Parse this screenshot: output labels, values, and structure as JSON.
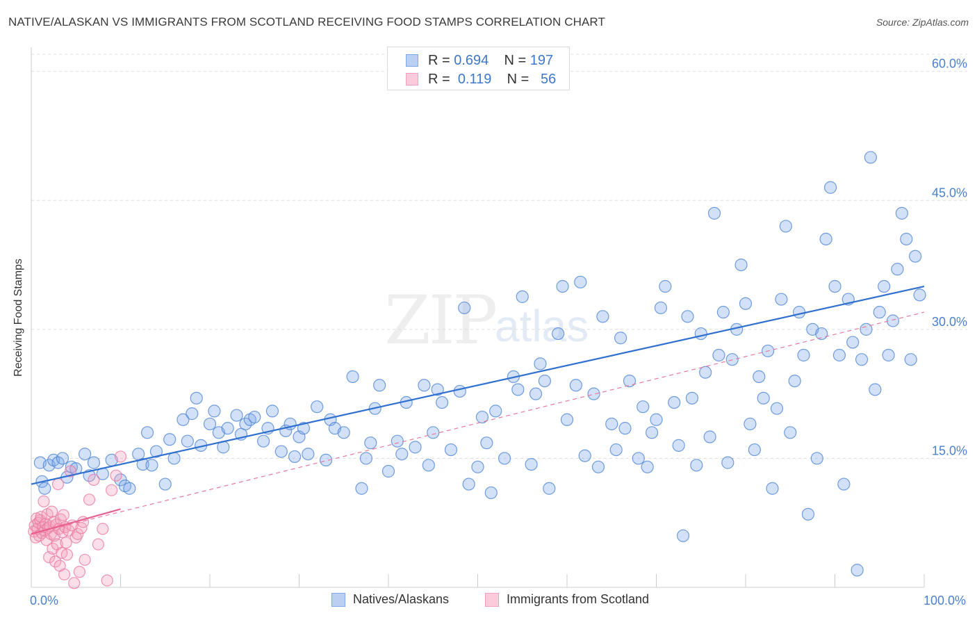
{
  "title": "NATIVE/ALASKAN VS IMMIGRANTS FROM SCOTLAND RECEIVING FOOD STAMPS CORRELATION CHART",
  "source": "Source: ZipAtlas.com",
  "watermark": {
    "zip": "ZIP",
    "atlas": "atlas"
  },
  "legend": [
    {
      "r_label": "R =",
      "r_value": "0.694",
      "n_label": "N =",
      "n_value": "197",
      "color": "#7ea8e8"
    },
    {
      "r_label": "R =",
      "r_value": "0.119",
      "n_label": "N =",
      "n_value": "56",
      "color": "#f4a0bd"
    }
  ],
  "bottom_legend": [
    {
      "label": "Natives/Alaskans",
      "color": "#7ea8e8"
    },
    {
      "label": "Immigrants from Scotland",
      "color": "#f4a0bd"
    }
  ],
  "chart_data": {
    "type": "scatter",
    "title": "NATIVE/ALASKAN VS IMMIGRANTS FROM SCOTLAND RECEIVING FOOD STAMPS CORRELATION CHART",
    "xlabel": "",
    "ylabel": "Receiving Food Stamps",
    "xlim": [
      0,
      100
    ],
    "ylim": [
      0,
      62
    ],
    "x_tick_labels": [
      {
        "value": 0,
        "label": "0.0%"
      },
      {
        "value": 100,
        "label": "100.0%"
      }
    ],
    "y_tick_labels": [
      {
        "value": 15,
        "label": "15.0%"
      },
      {
        "value": 30,
        "label": "30.0%"
      },
      {
        "value": 45,
        "label": "45.0%"
      },
      {
        "value": 60,
        "label": "60.0%"
      }
    ],
    "grid": true,
    "series": [
      {
        "name": "Natives/Alaskans",
        "color": "#7ea8e8",
        "stroke": "#4f86d6",
        "trend": {
          "x": [
            0,
            100
          ],
          "y": [
            12.0,
            35.0
          ],
          "style": "solid"
        },
        "points": [
          [
            1.0,
            14.5
          ],
          [
            1.2,
            12.3
          ],
          [
            1.5,
            11.5
          ],
          [
            2.0,
            14.2
          ],
          [
            2.5,
            14.8
          ],
          [
            3.0,
            14.5
          ],
          [
            3.5,
            15.0
          ],
          [
            4.0,
            12.8
          ],
          [
            4.5,
            14.0
          ],
          [
            5.0,
            13.8
          ],
          [
            6.0,
            15.5
          ],
          [
            6.5,
            13.0
          ],
          [
            7.0,
            14.5
          ],
          [
            8.0,
            13.2
          ],
          [
            9.0,
            14.8
          ],
          [
            10.0,
            12.5
          ],
          [
            10.5,
            11.8
          ],
          [
            11.0,
            11.5
          ],
          [
            12.0,
            15.5
          ],
          [
            12.5,
            14.3
          ],
          [
            13.0,
            18.0
          ],
          [
            13.5,
            14.2
          ],
          [
            14.0,
            15.8
          ],
          [
            15.0,
            12.0
          ],
          [
            15.5,
            17.2
          ],
          [
            16.0,
            15.0
          ],
          [
            17.0,
            19.5
          ],
          [
            17.5,
            17.0
          ],
          [
            18.0,
            20.2
          ],
          [
            18.5,
            22.0
          ],
          [
            19.0,
            16.5
          ],
          [
            20.0,
            19.0
          ],
          [
            20.5,
            20.5
          ],
          [
            21.0,
            18.0
          ],
          [
            21.5,
            16.3
          ],
          [
            22.0,
            18.5
          ],
          [
            23.0,
            20.0
          ],
          [
            23.5,
            17.8
          ],
          [
            24.0,
            19.0
          ],
          [
            24.5,
            19.5
          ],
          [
            25.0,
            19.8
          ],
          [
            26.0,
            17.0
          ],
          [
            26.5,
            18.5
          ],
          [
            27.0,
            20.5
          ],
          [
            28.0,
            15.8
          ],
          [
            28.5,
            18.2
          ],
          [
            29.0,
            19.0
          ],
          [
            29.5,
            15.2
          ],
          [
            30.0,
            17.5
          ],
          [
            30.5,
            18.5
          ],
          [
            31.0,
            15.5
          ],
          [
            32.0,
            21.0
          ],
          [
            33.0,
            14.8
          ],
          [
            33.5,
            19.5
          ],
          [
            34.0,
            18.5
          ],
          [
            35.0,
            18.0
          ],
          [
            36.0,
            24.5
          ],
          [
            37.0,
            11.5
          ],
          [
            37.5,
            15.0
          ],
          [
            38.0,
            16.8
          ],
          [
            38.5,
            20.8
          ],
          [
            39.0,
            23.5
          ],
          [
            40.0,
            13.5
          ],
          [
            41.0,
            17.0
          ],
          [
            41.5,
            15.5
          ],
          [
            42.0,
            21.5
          ],
          [
            43.0,
            16.3
          ],
          [
            44.0,
            23.5
          ],
          [
            44.5,
            14.2
          ],
          [
            45.0,
            18.0
          ],
          [
            45.5,
            23.0
          ],
          [
            46.0,
            21.5
          ],
          [
            47.0,
            16.0
          ],
          [
            48.0,
            22.8
          ],
          [
            48.5,
            32.5
          ],
          [
            49.0,
            12.0
          ],
          [
            50.0,
            14.0
          ],
          [
            50.5,
            19.8
          ],
          [
            51.0,
            16.8
          ],
          [
            51.5,
            11.0
          ],
          [
            52.0,
            20.5
          ],
          [
            53.0,
            15.0
          ],
          [
            54.0,
            24.5
          ],
          [
            54.5,
            23.0
          ],
          [
            55.0,
            33.8
          ],
          [
            56.0,
            14.3
          ],
          [
            56.5,
            22.5
          ],
          [
            57.0,
            26.0
          ],
          [
            57.5,
            24.0
          ],
          [
            58.0,
            11.5
          ],
          [
            59.0,
            29.5
          ],
          [
            59.5,
            35.0
          ],
          [
            60.0,
            19.5
          ],
          [
            61.0,
            23.5
          ],
          [
            61.5,
            35.5
          ],
          [
            62.0,
            15.3
          ],
          [
            63.0,
            22.5
          ],
          [
            63.5,
            14.0
          ],
          [
            64.0,
            31.5
          ],
          [
            65.0,
            19.0
          ],
          [
            65.5,
            16.0
          ],
          [
            66.0,
            29.0
          ],
          [
            66.5,
            18.5
          ],
          [
            67.0,
            24.0
          ],
          [
            68.0,
            15.0
          ],
          [
            68.5,
            21.0
          ],
          [
            69.0,
            14.0
          ],
          [
            69.5,
            18.0
          ],
          [
            70.0,
            19.5
          ],
          [
            70.5,
            32.5
          ],
          [
            71.0,
            35.0
          ],
          [
            72.0,
            21.5
          ],
          [
            72.5,
            16.5
          ],
          [
            73.0,
            6.0
          ],
          [
            73.5,
            31.5
          ],
          [
            74.0,
            22.0
          ],
          [
            74.5,
            14.2
          ],
          [
            75.0,
            29.5
          ],
          [
            75.5,
            25.0
          ],
          [
            76.0,
            17.5
          ],
          [
            76.5,
            43.5
          ],
          [
            77.0,
            27.0
          ],
          [
            77.5,
            32.0
          ],
          [
            78.0,
            14.5
          ],
          [
            78.5,
            26.5
          ],
          [
            79.0,
            30.0
          ],
          [
            79.5,
            37.5
          ],
          [
            80.0,
            33.0
          ],
          [
            80.5,
            19.0
          ],
          [
            81.0,
            16.0
          ],
          [
            81.5,
            24.5
          ],
          [
            82.0,
            22.0
          ],
          [
            82.5,
            27.5
          ],
          [
            83.0,
            11.5
          ],
          [
            83.5,
            20.8
          ],
          [
            84.0,
            33.5
          ],
          [
            84.5,
            42.0
          ],
          [
            85.0,
            18.0
          ],
          [
            85.5,
            24.0
          ],
          [
            86.0,
            32.0
          ],
          [
            86.5,
            27.0
          ],
          [
            87.0,
            8.5
          ],
          [
            87.5,
            30.0
          ],
          [
            88.0,
            15.0
          ],
          [
            88.5,
            29.5
          ],
          [
            89.0,
            40.5
          ],
          [
            89.5,
            46.5
          ],
          [
            90.0,
            35.0
          ],
          [
            90.5,
            27.0
          ],
          [
            91.0,
            12.0
          ],
          [
            91.5,
            33.5
          ],
          [
            92.0,
            28.5
          ],
          [
            92.5,
            2.0
          ],
          [
            93.0,
            26.5
          ],
          [
            93.5,
            30.0
          ],
          [
            94.0,
            50.0
          ],
          [
            94.5,
            23.0
          ],
          [
            95.0,
            32.0
          ],
          [
            95.5,
            35.0
          ],
          [
            96.0,
            27.0
          ],
          [
            96.5,
            31.0
          ],
          [
            97.0,
            37.0
          ],
          [
            97.5,
            43.5
          ],
          [
            98.0,
            40.5
          ],
          [
            98.5,
            26.5
          ],
          [
            99.0,
            38.5
          ],
          [
            99.5,
            34.0
          ]
        ]
      },
      {
        "name": "Immigrants from Scotland",
        "color": "#f4a0bd",
        "stroke": "#ea7aa0",
        "trend": {
          "x": [
            0,
            10
          ],
          "y": [
            6.2,
            9.1
          ],
          "style": "solid"
        },
        "trend_extended": {
          "x": [
            0,
            100
          ],
          "y": [
            6.2,
            32.0
          ],
          "style": "dashed"
        },
        "points": [
          [
            0.3,
            6.5
          ],
          [
            0.4,
            7.2
          ],
          [
            0.5,
            5.8
          ],
          [
            0.6,
            8.0
          ],
          [
            0.7,
            6.8
          ],
          [
            0.8,
            7.5
          ],
          [
            0.9,
            6.0
          ],
          [
            1.0,
            7.8
          ],
          [
            1.1,
            8.2
          ],
          [
            1.2,
            6.3
          ],
          [
            1.3,
            7.0
          ],
          [
            1.4,
            10.0
          ],
          [
            1.5,
            6.6
          ],
          [
            1.6,
            7.4
          ],
          [
            1.7,
            5.5
          ],
          [
            1.8,
            8.5
          ],
          [
            1.9,
            6.9
          ],
          [
            2.0,
            3.5
          ],
          [
            2.1,
            7.1
          ],
          [
            2.2,
            6.2
          ],
          [
            2.3,
            8.8
          ],
          [
            2.4,
            4.5
          ],
          [
            2.5,
            7.6
          ],
          [
            2.6,
            6.0
          ],
          [
            2.7,
            3.0
          ],
          [
            2.8,
            7.3
          ],
          [
            2.9,
            5.0
          ],
          [
            3.0,
            12.0
          ],
          [
            3.1,
            6.8
          ],
          [
            3.2,
            2.5
          ],
          [
            3.3,
            7.9
          ],
          [
            3.4,
            4.0
          ],
          [
            3.5,
            6.4
          ],
          [
            3.6,
            8.4
          ],
          [
            3.7,
            1.5
          ],
          [
            3.8,
            7.0
          ],
          [
            3.9,
            5.2
          ],
          [
            4.0,
            3.8
          ],
          [
            4.2,
            6.6
          ],
          [
            4.4,
            13.5
          ],
          [
            4.6,
            7.2
          ],
          [
            4.8,
            0.5
          ],
          [
            5.0,
            5.8
          ],
          [
            5.2,
            6.2
          ],
          [
            5.4,
            1.8
          ],
          [
            5.6,
            6.9
          ],
          [
            5.8,
            7.6
          ],
          [
            6.0,
            3.2
          ],
          [
            6.5,
            10.2
          ],
          [
            7.0,
            12.5
          ],
          [
            7.5,
            5.0
          ],
          [
            8.0,
            6.8
          ],
          [
            8.5,
            0.8
          ],
          [
            9.0,
            11.3
          ],
          [
            9.5,
            13.0
          ],
          [
            10.0,
            15.2
          ]
        ]
      }
    ]
  }
}
